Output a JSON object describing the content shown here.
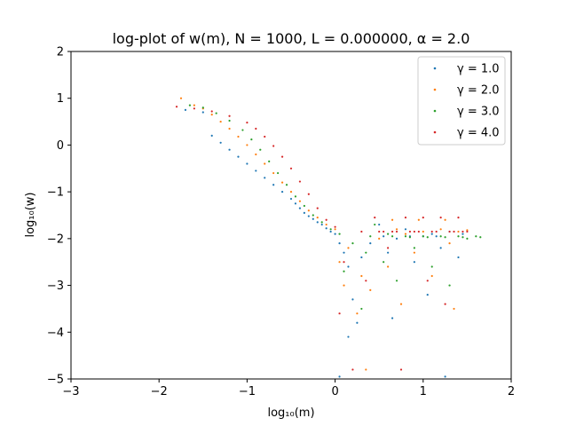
{
  "chart_data": {
    "type": "scatter",
    "title": "log-plot of w(m), N = 1000, L = 0.000000, α = 2.0",
    "xlabel": "log₁₀(m)",
    "ylabel": "log₁₀(w)",
    "xlim": [
      -3,
      2
    ],
    "ylim": [
      -5,
      2
    ],
    "xticks": [
      -3,
      -2,
      -1,
      0,
      1,
      2
    ],
    "yticks": [
      -5,
      -4,
      -3,
      -2,
      -1,
      0,
      1,
      2
    ],
    "xtick_labels": [
      "−3",
      "−2",
      "−1",
      "0",
      "1",
      "2"
    ],
    "ytick_labels": [
      "−5",
      "−4",
      "−3",
      "−2",
      "−1",
      "0",
      "1",
      "2"
    ],
    "grid": false,
    "legend_position": "top-right",
    "series": [
      {
        "name": "γ = 1.0",
        "color": "#1f77b4",
        "points": [
          [
            -1.7,
            0.75
          ],
          [
            -1.5,
            0.7
          ],
          [
            -1.4,
            0.2
          ],
          [
            -1.3,
            0.05
          ],
          [
            -1.2,
            -0.1
          ],
          [
            -1.1,
            -0.25
          ],
          [
            -1.0,
            -0.4
          ],
          [
            -0.9,
            -0.55
          ],
          [
            -0.8,
            -0.7
          ],
          [
            -0.7,
            -0.85
          ],
          [
            -0.6,
            -1.0
          ],
          [
            -0.5,
            -1.15
          ],
          [
            -0.45,
            -1.25
          ],
          [
            -0.4,
            -1.35
          ],
          [
            -0.35,
            -1.45
          ],
          [
            -0.3,
            -1.52
          ],
          [
            -0.25,
            -1.58
          ],
          [
            -0.2,
            -1.65
          ],
          [
            -0.15,
            -1.7
          ],
          [
            -0.1,
            -1.78
          ],
          [
            -0.05,
            -1.85
          ],
          [
            0.0,
            -1.9
          ],
          [
            0.05,
            -2.1
          ],
          [
            0.1,
            -2.3
          ],
          [
            0.15,
            -2.6
          ],
          [
            0.2,
            -3.3
          ],
          [
            0.25,
            -3.8
          ],
          [
            0.3,
            -2.4
          ],
          [
            0.4,
            -2.1
          ],
          [
            0.5,
            -1.7
          ],
          [
            0.6,
            -2.3
          ],
          [
            0.65,
            -3.7
          ],
          [
            0.7,
            -2.0
          ],
          [
            0.8,
            -1.8
          ],
          [
            0.9,
            -2.5
          ],
          [
            1.0,
            -1.95
          ],
          [
            1.05,
            -3.2
          ],
          [
            1.1,
            -1.9
          ],
          [
            1.2,
            -2.2
          ],
          [
            1.25,
            -4.95
          ],
          [
            1.3,
            -1.85
          ],
          [
            1.4,
            -2.4
          ],
          [
            1.45,
            -1.9
          ],
          [
            0.05,
            -4.95
          ],
          [
            0.15,
            -4.1
          ],
          [
            0.55,
            -1.95
          ],
          [
            0.85,
            -1.95
          ],
          [
            1.15,
            -1.95
          ]
        ]
      },
      {
        "name": "γ = 2.0",
        "color": "#ff7f0e",
        "points": [
          [
            -1.75,
            1.0
          ],
          [
            -1.6,
            0.85
          ],
          [
            -1.5,
            0.78
          ],
          [
            -1.4,
            0.65
          ],
          [
            -1.3,
            0.5
          ],
          [
            -1.2,
            0.35
          ],
          [
            -1.1,
            0.18
          ],
          [
            -1.0,
            0.0
          ],
          [
            -0.9,
            -0.2
          ],
          [
            -0.8,
            -0.4
          ],
          [
            -0.7,
            -0.6
          ],
          [
            -0.6,
            -0.8
          ],
          [
            -0.5,
            -1.0
          ],
          [
            -0.4,
            -1.2
          ],
          [
            -0.3,
            -1.4
          ],
          [
            -0.2,
            -1.55
          ],
          [
            -0.1,
            -1.7
          ],
          [
            0.0,
            -1.8
          ],
          [
            0.05,
            -2.5
          ],
          [
            0.1,
            -3.0
          ],
          [
            0.15,
            -2.2
          ],
          [
            0.25,
            -3.6
          ],
          [
            0.3,
            -2.8
          ],
          [
            0.4,
            -3.1
          ],
          [
            0.5,
            -2.0
          ],
          [
            0.6,
            -2.6
          ],
          [
            0.7,
            -1.8
          ],
          [
            0.75,
            -3.4
          ],
          [
            0.8,
            -1.9
          ],
          [
            0.9,
            -2.3
          ],
          [
            1.0,
            -1.85
          ],
          [
            1.1,
            -2.8
          ],
          [
            1.2,
            -1.8
          ],
          [
            1.3,
            -2.1
          ],
          [
            1.35,
            -3.5
          ],
          [
            1.4,
            -1.85
          ],
          [
            1.5,
            -1.82
          ],
          [
            0.35,
            -4.8
          ],
          [
            0.65,
            -1.6
          ],
          [
            0.95,
            -1.6
          ],
          [
            1.25,
            -1.6
          ]
        ]
      },
      {
        "name": "γ = 3.0",
        "color": "#2ca02c",
        "points": [
          [
            -1.65,
            0.85
          ],
          [
            -1.5,
            0.8
          ],
          [
            -1.35,
            0.68
          ],
          [
            -1.2,
            0.52
          ],
          [
            -1.05,
            0.32
          ],
          [
            -0.95,
            0.12
          ],
          [
            -0.85,
            -0.1
          ],
          [
            -0.75,
            -0.35
          ],
          [
            -0.65,
            -0.6
          ],
          [
            -0.55,
            -0.85
          ],
          [
            -0.45,
            -1.1
          ],
          [
            -0.35,
            -1.3
          ],
          [
            -0.25,
            -1.5
          ],
          [
            -0.15,
            -1.65
          ],
          [
            -0.05,
            -1.8
          ],
          [
            0.05,
            -1.9
          ],
          [
            0.1,
            -2.7
          ],
          [
            0.2,
            -2.1
          ],
          [
            0.3,
            -3.5
          ],
          [
            0.35,
            -2.3
          ],
          [
            0.45,
            -1.7
          ],
          [
            0.55,
            -2.5
          ],
          [
            0.6,
            -1.9
          ],
          [
            0.7,
            -2.9
          ],
          [
            0.8,
            -1.95
          ],
          [
            0.9,
            -2.2
          ],
          [
            1.0,
            -1.95
          ],
          [
            1.1,
            -2.6
          ],
          [
            1.2,
            -1.95
          ],
          [
            1.3,
            -3.0
          ],
          [
            1.4,
            -1.95
          ],
          [
            1.5,
            -2.0
          ],
          [
            1.6,
            -1.95
          ],
          [
            1.65,
            -1.97
          ],
          [
            0.4,
            -1.95
          ],
          [
            0.65,
            -1.95
          ],
          [
            0.85,
            -1.97
          ],
          [
            1.05,
            -1.97
          ],
          [
            1.25,
            -1.97
          ],
          [
            1.45,
            -1.97
          ]
        ]
      },
      {
        "name": "γ = 4.0",
        "color": "#d62728",
        "points": [
          [
            -1.8,
            0.82
          ],
          [
            -1.6,
            0.78
          ],
          [
            -1.4,
            0.72
          ],
          [
            -1.2,
            0.62
          ],
          [
            -1.0,
            0.48
          ],
          [
            -0.9,
            0.35
          ],
          [
            -0.8,
            0.18
          ],
          [
            -0.7,
            -0.02
          ],
          [
            -0.6,
            -0.25
          ],
          [
            -0.5,
            -0.5
          ],
          [
            -0.4,
            -0.78
          ],
          [
            -0.3,
            -1.05
          ],
          [
            -0.2,
            -1.35
          ],
          [
            -0.1,
            -1.6
          ],
          [
            0.0,
            -1.75
          ],
          [
            0.05,
            -3.6
          ],
          [
            0.1,
            -2.5
          ],
          [
            0.2,
            -4.8
          ],
          [
            0.3,
            -1.85
          ],
          [
            0.35,
            -2.9
          ],
          [
            0.45,
            -1.55
          ],
          [
            0.5,
            -1.85
          ],
          [
            0.6,
            -2.2
          ],
          [
            0.7,
            -1.85
          ],
          [
            0.75,
            -4.8
          ],
          [
            0.8,
            -1.55
          ],
          [
            0.9,
            -1.85
          ],
          [
            1.0,
            -1.55
          ],
          [
            1.05,
            -2.9
          ],
          [
            1.1,
            -1.85
          ],
          [
            1.2,
            -1.55
          ],
          [
            1.25,
            -3.4
          ],
          [
            1.3,
            -1.85
          ],
          [
            1.4,
            -1.55
          ],
          [
            1.45,
            -1.85
          ],
          [
            1.5,
            -1.85
          ],
          [
            0.55,
            -1.85
          ],
          [
            0.65,
            -1.85
          ],
          [
            0.85,
            -1.85
          ],
          [
            0.95,
            -1.85
          ],
          [
            1.15,
            -1.85
          ],
          [
            1.35,
            -1.85
          ]
        ]
      }
    ]
  }
}
